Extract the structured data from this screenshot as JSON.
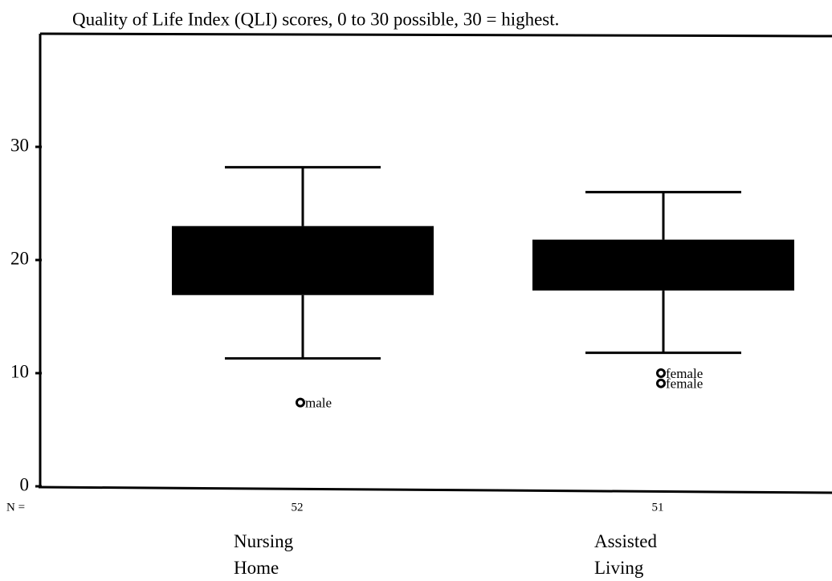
{
  "chart_data": {
    "type": "box",
    "title": "Quality of Life Index (QLI) scores, 0 to 30 possible, 30 = highest.",
    "categories": [
      "Nursing Home",
      "Assisted Living"
    ],
    "n_label": "N =",
    "n": [
      52,
      51
    ],
    "whisker_low": [
      11.3,
      11.8
    ],
    "q1": [
      16.9,
      17.3
    ],
    "q3": [
      23.0,
      21.8
    ],
    "whisker_high": [
      28.2,
      26.0
    ],
    "outliers": [
      [
        7.4
      ],
      [
        10.0,
        9.1
      ]
    ],
    "outlier_labels": [
      [
        "male"
      ],
      [
        "female",
        "female"
      ]
    ],
    "color": "#000000",
    "ylim": [
      0,
      40
    ],
    "yticks": [
      0,
      10,
      20,
      30
    ]
  }
}
